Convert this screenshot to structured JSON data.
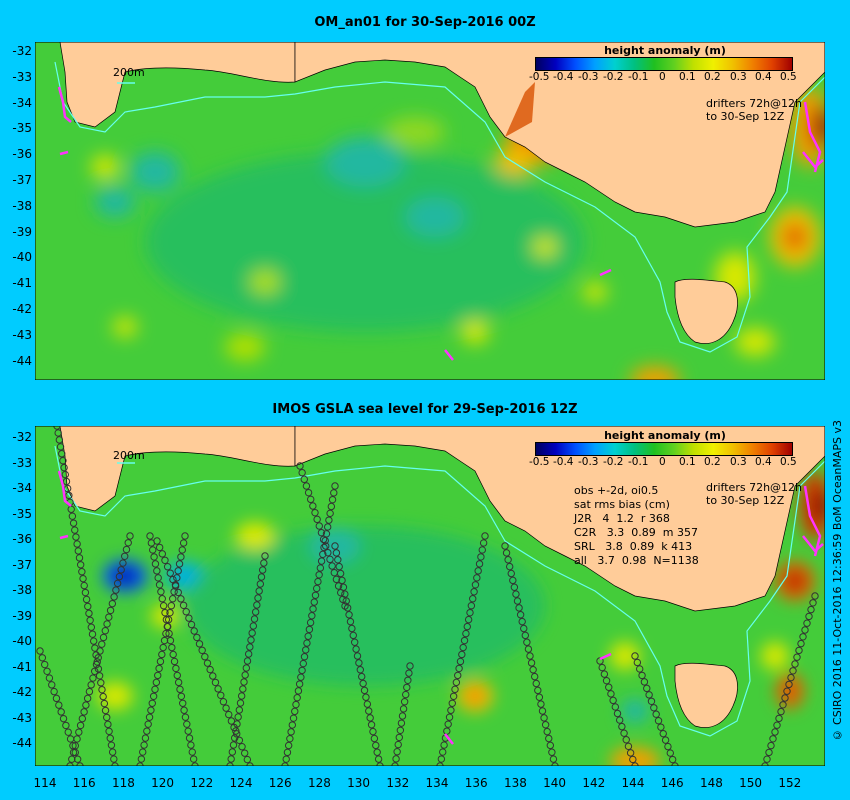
{
  "panels": [
    {
      "title": "OM_an01 for 30-Sep-2016 00Z",
      "scale_label": "200m",
      "colorbar_title": "height anomaly (m)",
      "drifters_line1": "drifters 72h@12h",
      "drifters_line2": "to 30-Sep 12Z"
    },
    {
      "title": "IMOS GSLA sea level  for 29-Sep-2016 12Z",
      "scale_label": "200m",
      "colorbar_title": "height anomaly (m)",
      "drifters_line1": "drifters 72h@12h",
      "drifters_line2": "to 30-Sep 12Z",
      "stats": {
        "line1": "obs +-2d, oi0.5",
        "line2": "sat rms bias (cm)",
        "rows": [
          "J2R   4  1.2  r 368",
          "C2R   3.3  0.89  m 357",
          "SRL   3.8  0.89  k 413",
          "all   3.7  0.98  N=1138"
        ]
      }
    }
  ],
  "colorbar_ticks": [
    "-0.5",
    "-0.4",
    "-0.3",
    "-0.2",
    "-0.1",
    "0",
    "0.1",
    "0.2",
    "0.3",
    "0.4",
    "0.5"
  ],
  "y_ticks": [
    "-32",
    "-33",
    "-34",
    "-35",
    "-36",
    "-37",
    "-38",
    "-39",
    "-40",
    "-41",
    "-42",
    "-43",
    "-44"
  ],
  "x_ticks": [
    "114",
    "116",
    "118",
    "120",
    "122",
    "124",
    "126",
    "128",
    "130",
    "132",
    "134",
    "136",
    "138",
    "140",
    "142",
    "144",
    "146",
    "148",
    "150",
    "152"
  ],
  "credit": "© CSIRO 2016  11-Oct-2016 12:36:59 BoM OceanMAPS v3",
  "colors": {
    "background": "#00ccff",
    "land": "#ffcc99",
    "ocean_base": "#33cc33",
    "drifter": "#ff33ff"
  }
}
